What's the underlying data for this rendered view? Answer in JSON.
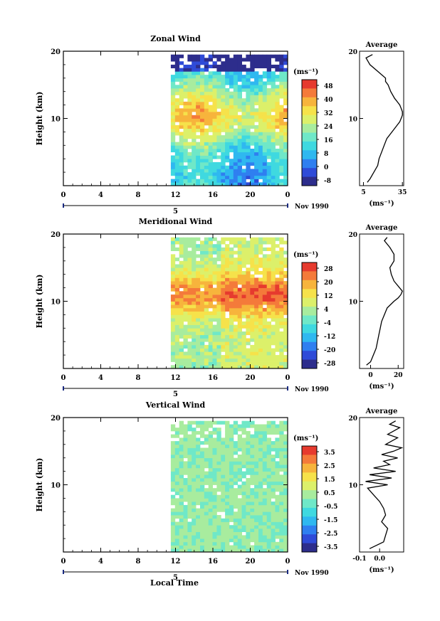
{
  "xlabel": "Local Time",
  "date_label": "Nov 1990",
  "chart_data": [
    {
      "type": "heatmap",
      "title": "Zonal Wind",
      "ylabel": "Height (km)",
      "ylim": [
        0,
        20
      ],
      "yticks": [
        "10",
        "20"
      ],
      "xticks": [
        "0",
        "4",
        "8",
        "12",
        "16",
        "20",
        "0"
      ],
      "day_label": "5",
      "data_start_hour": 11.5,
      "unit_label": "(ms⁻¹)",
      "colorbar_ticks": [
        "48",
        "40",
        "32",
        "24",
        "16",
        "8",
        "0",
        "-8"
      ],
      "profile": {
        "title": "Average",
        "xticks": [
          "5",
          "35"
        ],
        "xlim": [
          2,
          36
        ],
        "xunit": "(ms⁻¹)",
        "heights": [
          0.5,
          1,
          2,
          3,
          4,
          5,
          6,
          7,
          8,
          9,
          9.5,
          10,
          10.5,
          11,
          11.5,
          12,
          12.5,
          13,
          14,
          15,
          15.5,
          16,
          17,
          18,
          19,
          19.5
        ],
        "values": [
          8,
          10,
          13,
          16,
          17,
          19,
          21,
          23,
          27,
          31,
          33,
          34,
          35,
          35,
          34,
          33,
          31,
          29,
          26,
          24,
          22,
          22,
          16,
          10,
          7,
          12
        ]
      }
    },
    {
      "type": "heatmap",
      "title": "Meridional Wind",
      "ylabel": "Height (km)",
      "ylim": [
        0,
        20
      ],
      "yticks": [
        "10",
        "20"
      ],
      "xticks": [
        "0",
        "4",
        "8",
        "12",
        "16",
        "20",
        "0"
      ],
      "day_label": "5",
      "data_start_hour": 11.5,
      "unit_label": "(ms⁻¹)",
      "colorbar_ticks": [
        "28",
        "20",
        "12",
        "4",
        "-4",
        "-12",
        "-20",
        "-28"
      ],
      "profile": {
        "title": "Average",
        "xticks": [
          "0",
          "20"
        ],
        "xlim": [
          -8,
          24
        ],
        "xunit": "(ms⁻¹)",
        "heights": [
          0.5,
          1,
          2,
          3,
          4,
          5,
          6,
          7,
          8,
          9,
          10,
          10.5,
          11,
          11.5,
          12,
          13,
          14,
          15,
          16,
          17,
          18,
          19,
          19.5
        ],
        "values": [
          -3,
          0,
          2,
          4,
          5,
          6,
          7,
          8,
          10,
          12,
          17,
          20,
          22,
          23,
          21,
          17,
          15,
          14,
          17,
          17,
          14,
          10,
          12
        ]
      }
    },
    {
      "type": "heatmap",
      "title": "Vertical Wind",
      "ylabel": "Height (km)",
      "ylim": [
        0,
        20
      ],
      "yticks": [
        "10",
        "20"
      ],
      "xticks": [
        "0",
        "4",
        "8",
        "12",
        "16",
        "20",
        "0"
      ],
      "day_label": "5",
      "data_start_hour": 11.5,
      "unit_label": "(ms⁻¹)",
      "colorbar_ticks": [
        "3.5",
        "2.5",
        "1.5",
        "0.5",
        "-0.5",
        "-1.5",
        "-2.5",
        "-3.5"
      ],
      "profile": {
        "title": "Average",
        "xticks": [
          "-0.1",
          "0.0"
        ],
        "xlim": [
          -0.1,
          0.12
        ],
        "xunit": "(ms⁻¹)",
        "heights": [
          0.5,
          1.5,
          2.5,
          3.5,
          4.5,
          5.5,
          6.5,
          7.5,
          8.5,
          9.5,
          10,
          10.5,
          11,
          11.5,
          12,
          12.5,
          13,
          13.5,
          14,
          14.5,
          15,
          15.5,
          16,
          16.5,
          17,
          17.5,
          18,
          18.5,
          19,
          19.5
        ],
        "values": [
          -0.05,
          0.02,
          0.03,
          0.04,
          0.01,
          0.03,
          0.02,
          0.0,
          -0.03,
          -0.06,
          0.04,
          -0.07,
          0.06,
          -0.05,
          0.08,
          -0.03,
          0.05,
          0.02,
          0.09,
          0.01,
          0.07,
          0.11,
          0.03,
          0.06,
          0.09,
          0.04,
          0.07,
          0.1,
          0.05,
          0.08
        ]
      }
    }
  ],
  "colorbar_colors": [
    "#2d2d8c",
    "#2f4bd8",
    "#2f7ff0",
    "#2fb8f0",
    "#3fd9e0",
    "#6fe8c8",
    "#a8ec9e",
    "#dcf06a",
    "#f6e24a",
    "#f7b43c",
    "#f47a3a",
    "#e63a2e"
  ]
}
